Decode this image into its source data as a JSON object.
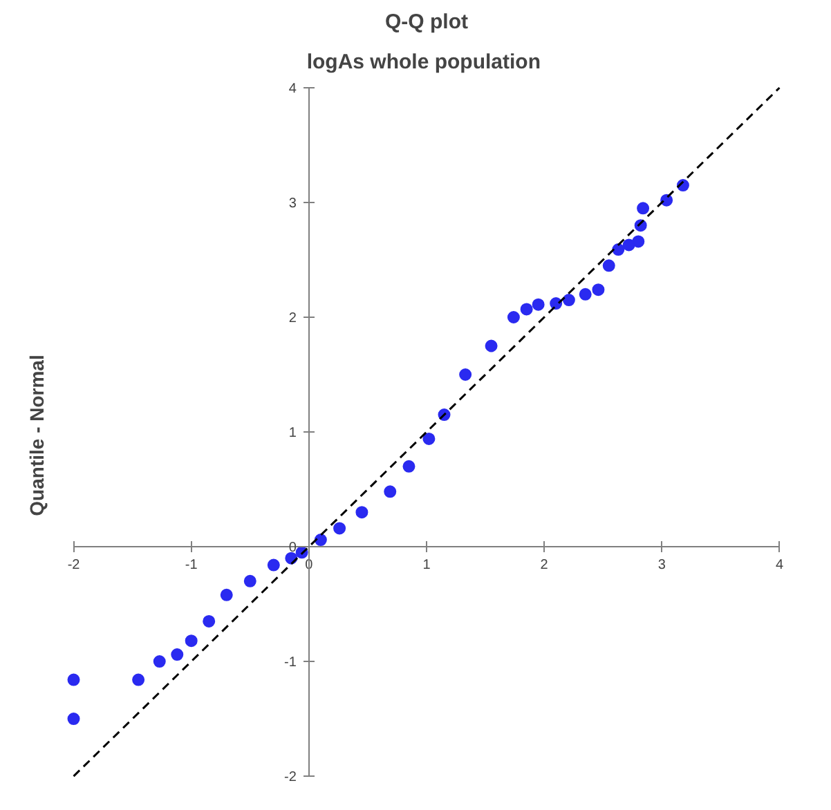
{
  "chart_data": {
    "type": "scatter",
    "title": "Q-Q plot",
    "subtitle": "logAs  whole population",
    "ylabel": "Quantile - Normal",
    "xlim": [
      -2,
      4
    ],
    "ylim": [
      -2,
      4
    ],
    "xticks": [
      -2,
      -1,
      0,
      1,
      2,
      3,
      4
    ],
    "yticks": [
      -2,
      -1,
      0,
      1,
      2,
      3,
      4
    ],
    "grid": false,
    "marker": "circle",
    "series": [
      {
        "color": "#2a2af0",
        "x": [
          -2,
          -2,
          -1.45,
          -1.27,
          -1.12,
          -1.0,
          -0.85,
          -0.7,
          -0.5,
          -0.3,
          -0.15,
          -0.06,
          0.1,
          0.26,
          0.45,
          0.69,
          0.85,
          1.02,
          1.15,
          1.33,
          1.55,
          1.74,
          1.85,
          1.95,
          2.1,
          2.21,
          2.35,
          2.46,
          2.55,
          2.63,
          2.72,
          2.8,
          2.82,
          2.84,
          3.04,
          3.18
        ],
        "values": [
          -1.16,
          -1.5,
          -1.16,
          -1.0,
          -0.94,
          -0.82,
          -0.65,
          -0.42,
          -0.3,
          -0.16,
          -0.1,
          -0.05,
          0.06,
          0.16,
          0.3,
          0.48,
          0.7,
          0.94,
          1.15,
          1.5,
          1.75,
          2.0,
          2.07,
          2.11,
          2.12,
          2.15,
          2.2,
          2.24,
          2.45,
          2.59,
          2.63,
          2.66,
          2.8,
          2.95,
          3.02,
          3.15
        ]
      },
      {
        "type": "line",
        "color": "#000000",
        "line_style": "dashed",
        "marker": "none",
        "x": [
          -2,
          4
        ],
        "values": [
          -2,
          4
        ]
      }
    ]
  }
}
